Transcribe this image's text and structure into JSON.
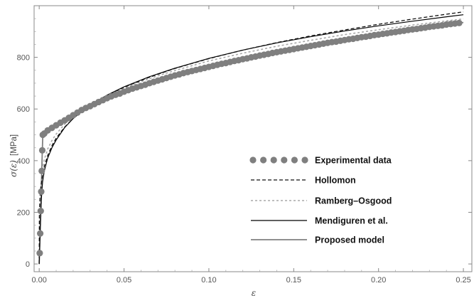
{
  "chart_data": {
    "type": "line",
    "title": "",
    "xlabel": "ε",
    "ylabel": "σ(ε)  [MPa]",
    "ylabel_main": "σ(ε)",
    "ylabel_unit": "[MPa]",
    "xlim": [
      -0.003,
      0.255
    ],
    "ylim": [
      -30,
      1000
    ],
    "xticks": [
      0.0,
      0.05,
      0.1,
      0.15,
      0.2,
      0.25
    ],
    "xtick_labels": [
      "0.00",
      "0.05",
      "0.10",
      "0.15",
      "0.20",
      "0.25"
    ],
    "yticks": [
      0,
      200,
      400,
      600,
      800
    ],
    "ytick_labels": [
      "0",
      "200",
      "400",
      "600",
      "800"
    ],
    "grid": false,
    "legend_position": "center-right",
    "series": [
      {
        "name": "Experimental data",
        "style": "markers",
        "color": "#7f7f7f",
        "x": [
          0.0003,
          0.0006,
          0.0009,
          0.0012,
          0.0015,
          0.0018,
          0.0021,
          0.003,
          0.005,
          0.0075,
          0.01,
          0.0125,
          0.015,
          0.0175,
          0.02,
          0.0225,
          0.025,
          0.0275,
          0.03,
          0.0325,
          0.035,
          0.0375,
          0.04,
          0.0425,
          0.045,
          0.0475,
          0.05,
          0.0525,
          0.055,
          0.0575,
          0.06,
          0.0625,
          0.065,
          0.0675,
          0.07,
          0.0725,
          0.075,
          0.0775,
          0.08,
          0.0825,
          0.085,
          0.0875,
          0.09,
          0.0925,
          0.095,
          0.0975,
          0.1,
          0.1025,
          0.105,
          0.1075,
          0.11,
          0.1125,
          0.115,
          0.1175,
          0.12,
          0.1225,
          0.125,
          0.1275,
          0.13,
          0.1325,
          0.135,
          0.1375,
          0.14,
          0.1425,
          0.145,
          0.1475,
          0.15,
          0.1525,
          0.155,
          0.1575,
          0.16,
          0.1625,
          0.165,
          0.1675,
          0.17,
          0.1725,
          0.175,
          0.1775,
          0.18,
          0.1825,
          0.185,
          0.1875,
          0.19,
          0.1925,
          0.195,
          0.1975,
          0.2,
          0.2025,
          0.205,
          0.2075,
          0.21,
          0.2125,
          0.215,
          0.2175,
          0.22,
          0.2225,
          0.225,
          0.2275,
          0.23,
          0.2325,
          0.235,
          0.2375,
          0.24,
          0.2425,
          0.245,
          0.2475
        ],
        "y": [
          42,
          118,
          205,
          280,
          360,
          440,
          500,
          505,
          517,
          527,
          537,
          547,
          556,
          566,
          576,
          586,
          596,
          604,
          611,
          619,
          627,
          634,
          642,
          649,
          655,
          660,
          667,
          673,
          679,
          684,
          689,
          694,
          700,
          705,
          710,
          715,
          720,
          725,
          730,
          734,
          739,
          743,
          747,
          751,
          755,
          759,
          763,
          767,
          771,
          775,
          778,
          782,
          786,
          789,
          793,
          796,
          800,
          803,
          807,
          810,
          813,
          817,
          820,
          823,
          826,
          829,
          832,
          835,
          838,
          841,
          844,
          847,
          850,
          853,
          856,
          859,
          861,
          864,
          867,
          870,
          872,
          875,
          878,
          880,
          883,
          886,
          888,
          891,
          893,
          896,
          898,
          901,
          903,
          906,
          908,
          910,
          913,
          915,
          918,
          920,
          922,
          924,
          927,
          929,
          931,
          933
        ]
      },
      {
        "name": "Hollomon",
        "style": "dashed",
        "color": "#111111",
        "x": [
          0.0,
          0.0001,
          0.0002,
          0.0005,
          0.001,
          0.002,
          0.003,
          0.005,
          0.0075,
          0.01,
          0.015,
          0.02,
          0.03,
          0.04,
          0.05,
          0.065,
          0.08,
          0.1,
          0.12,
          0.14,
          0.16,
          0.18,
          0.2,
          0.22,
          0.24,
          0.25
        ],
        "y": [
          0,
          185,
          215,
          262,
          302,
          348,
          378,
          420,
          458,
          487,
          530,
          563,
          614,
          653,
          684,
          723,
          757,
          795,
          828,
          857,
          883,
          906,
          928,
          948,
          967,
          976
        ]
      },
      {
        "name": "Ramberg–Osgood",
        "style": "dotted",
        "color": "#a8a8a8",
        "x": [
          0.0,
          0.0003,
          0.0006,
          0.0009,
          0.0012,
          0.0015,
          0.0018,
          0.0021,
          0.003,
          0.005,
          0.0075,
          0.01,
          0.015,
          0.02,
          0.03,
          0.04,
          0.05,
          0.065,
          0.08,
          0.1,
          0.12,
          0.14,
          0.16,
          0.18,
          0.2,
          0.22,
          0.24,
          0.25
        ],
        "y": [
          0,
          60,
          120,
          180,
          240,
          300,
          345,
          372,
          405,
          445,
          478,
          503,
          541,
          571,
          617,
          652,
          681,
          718,
          749,
          786,
          816,
          843,
          866,
          888,
          907,
          925,
          941,
          949
        ]
      },
      {
        "name": "Mendiguren et al.",
        "style": "solid",
        "color": "#000000",
        "x": [
          0.0,
          0.0003,
          0.0006,
          0.0009,
          0.0012,
          0.0015,
          0.002,
          0.003,
          0.005,
          0.0075,
          0.01,
          0.015,
          0.02,
          0.03,
          0.04,
          0.05,
          0.065,
          0.08,
          0.1,
          0.12,
          0.14,
          0.16,
          0.18,
          0.2,
          0.22,
          0.24,
          0.25
        ],
        "y": [
          0,
          65,
          130,
          190,
          240,
          275,
          318,
          360,
          410,
          450,
          480,
          528,
          563,
          615,
          654,
          686,
          725,
          758,
          796,
          828,
          856,
          880,
          902,
          922,
          940,
          957,
          965
        ]
      },
      {
        "name": "Proposed model",
        "style": "solid",
        "color": "#808080",
        "x": [
          0.0,
          0.0003,
          0.0006,
          0.0009,
          0.0012,
          0.0015,
          0.0018,
          0.0021,
          0.003,
          0.005,
          0.0075,
          0.01,
          0.015,
          0.02,
          0.025,
          0.03,
          0.04,
          0.05,
          0.065,
          0.08,
          0.1,
          0.12,
          0.14,
          0.16,
          0.18,
          0.2,
          0.22,
          0.24,
          0.25
        ],
        "y": [
          0,
          70,
          140,
          210,
          280,
          360,
          430,
          495,
          504,
          516,
          527,
          536,
          556,
          576,
          596,
          611,
          642,
          667,
          700,
          730,
          765,
          794,
          820,
          844,
          867,
          888,
          908,
          927,
          935
        ]
      }
    ]
  }
}
